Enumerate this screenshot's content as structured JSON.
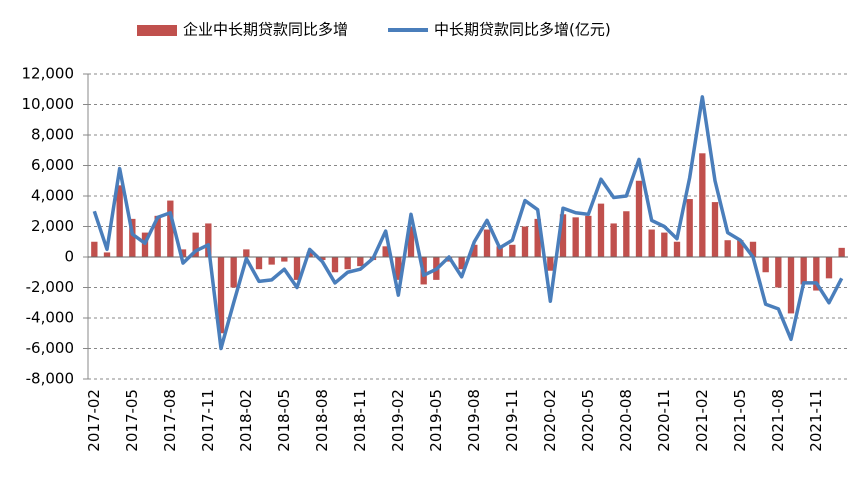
{
  "chart_data": {
    "type": "bar_line",
    "categories": [
      "2017-02",
      null,
      null,
      "2017-05",
      null,
      null,
      "2017-08",
      null,
      null,
      "2017-11",
      null,
      null,
      "2018-02",
      null,
      null,
      "2018-05",
      null,
      null,
      "2018-08",
      null,
      null,
      "2018-11",
      null,
      null,
      "2019-02",
      null,
      null,
      "2019-05",
      null,
      null,
      "2019-08",
      null,
      null,
      "2019-11",
      null,
      null,
      "2020-02",
      null,
      null,
      "2020-05",
      null,
      null,
      "2020-08",
      null,
      null,
      "2020-11",
      null,
      null,
      "2021-02",
      null,
      null,
      "2021-05",
      null,
      null,
      "2021-08",
      null,
      null,
      "2021-11",
      null,
      null
    ],
    "series": [
      {
        "name": "企业中长期贷款同比多增",
        "color": "#c0504d",
        "kind": "bar",
        "values": [
          1000,
          300,
          4700,
          2500,
          1600,
          2700,
          3700,
          500,
          1600,
          2200,
          -5000,
          -2000,
          500,
          -800,
          -500,
          -300,
          -1500,
          300,
          -200,
          -1000,
          -800,
          -600,
          -200,
          700,
          -1500,
          2000,
          -1800,
          -1500,
          -300,
          -800,
          800,
          1800,
          700,
          800,
          2000,
          2500,
          -900,
          2800,
          2600,
          2700,
          3500,
          2200,
          3000,
          5000,
          1800,
          1600,
          1000,
          3800,
          6800,
          3600,
          1100,
          1100,
          1000,
          -1000,
          -2000,
          -3700,
          -1800,
          -2200,
          -1400,
          600
        ]
      },
      {
        "name": "中长期贷款同比多增(亿元)",
        "color": "#4a7ebb",
        "kind": "line",
        "values": [
          3000,
          500,
          5800,
          1500,
          900,
          2600,
          2900,
          -400,
          400,
          800,
          -6000,
          -3000,
          -100,
          -1600,
          -1500,
          -800,
          -2000,
          500,
          -300,
          -1700,
          -1000,
          -800,
          -100,
          1700,
          -2500,
          2800,
          -1200,
          -800,
          0,
          -1300,
          1000,
          2400,
          600,
          1100,
          3700,
          3100,
          -2900,
          3200,
          2900,
          2800,
          5100,
          3900,
          4000,
          6400,
          2400,
          2000,
          1200,
          5200,
          10500,
          5000,
          1600,
          1100,
          0,
          -3100,
          -3400,
          -5400,
          -1700,
          -1700,
          -3000,
          -1400
        ]
      }
    ],
    "ylim": [
      -8000,
      12000
    ],
    "yticks": [
      {
        "value": -8000,
        "label": "-8,000"
      },
      {
        "value": -6000,
        "label": "-6,000"
      },
      {
        "value": -4000,
        "label": "-4,000"
      },
      {
        "value": -2000,
        "label": "-2,000"
      },
      0,
      {
        "value": 2000,
        "label": "2,000"
      },
      {
        "value": 4000,
        "label": "4,000"
      },
      {
        "value": 6000,
        "label": "6,000"
      },
      {
        "value": 8000,
        "label": "8,000"
      },
      {
        "value": 10000,
        "label": "10,000"
      },
      {
        "value": 12000,
        "label": "12,000"
      }
    ],
    "grid": true,
    "legend": "top"
  }
}
